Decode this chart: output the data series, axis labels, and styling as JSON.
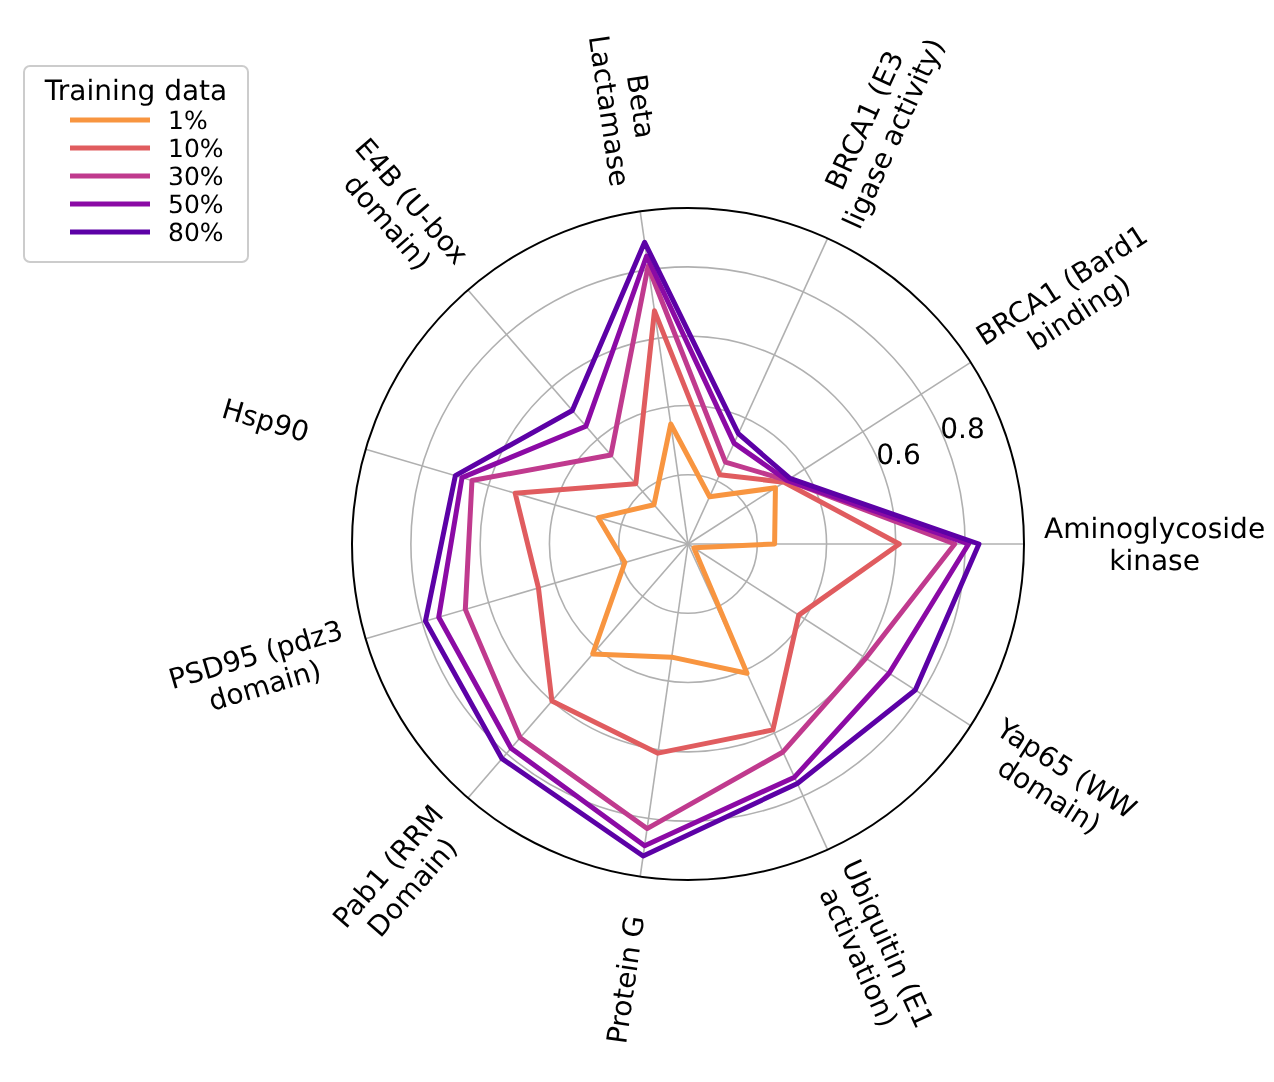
{
  "chart_data": {
    "type": "radar",
    "legend_title": "Training data",
    "legend": "top left",
    "grid": true,
    "categories": [
      "BRCA1 (E3\nligase activity)",
      "BRCA1 (Bard1\nbinding)",
      "Aminoglycoside\nkinase",
      "Yap65 (WW\ndomain)",
      "Ubiquitin (E1\nactivation)",
      "Protein G",
      "Pab1 (RRM\nDomain)",
      "PSD95 (pdz3\ndomain)",
      "Hsp90",
      "E4B (U-box\ndomain)",
      "Beta\nLactamase"
    ],
    "ylim": [
      0,
      0.97
    ],
    "yticks": [
      0.6,
      0.8
    ],
    "series": [
      {
        "name": "1%",
        "color": "#f89540",
        "values": [
          0.15,
          0.3,
          0.25,
          0.02,
          0.41,
          0.33,
          0.42,
          0.19,
          0.27,
          0.15,
          0.35
        ]
      },
      {
        "name": "10%",
        "color": "#e05c5f",
        "values": [
          0.22,
          0.33,
          0.61,
          0.38,
          0.59,
          0.61,
          0.6,
          0.45,
          0.52,
          0.23,
          0.68
        ]
      },
      {
        "name": "30%",
        "color": "#c03a8e",
        "values": [
          0.26,
          0.34,
          0.77,
          0.61,
          0.66,
          0.83,
          0.74,
          0.67,
          0.65,
          0.34,
          0.81
        ]
      },
      {
        "name": "50%",
        "color": "#8b0aa5",
        "values": [
          0.32,
          0.34,
          0.81,
          0.69,
          0.74,
          0.88,
          0.78,
          0.75,
          0.68,
          0.45,
          0.84
        ]
      },
      {
        "name": "80%",
        "color": "#5c01a6",
        "values": [
          0.35,
          0.35,
          0.84,
          0.78,
          0.76,
          0.91,
          0.82,
          0.79,
          0.7,
          0.51,
          0.88
        ]
      }
    ]
  }
}
